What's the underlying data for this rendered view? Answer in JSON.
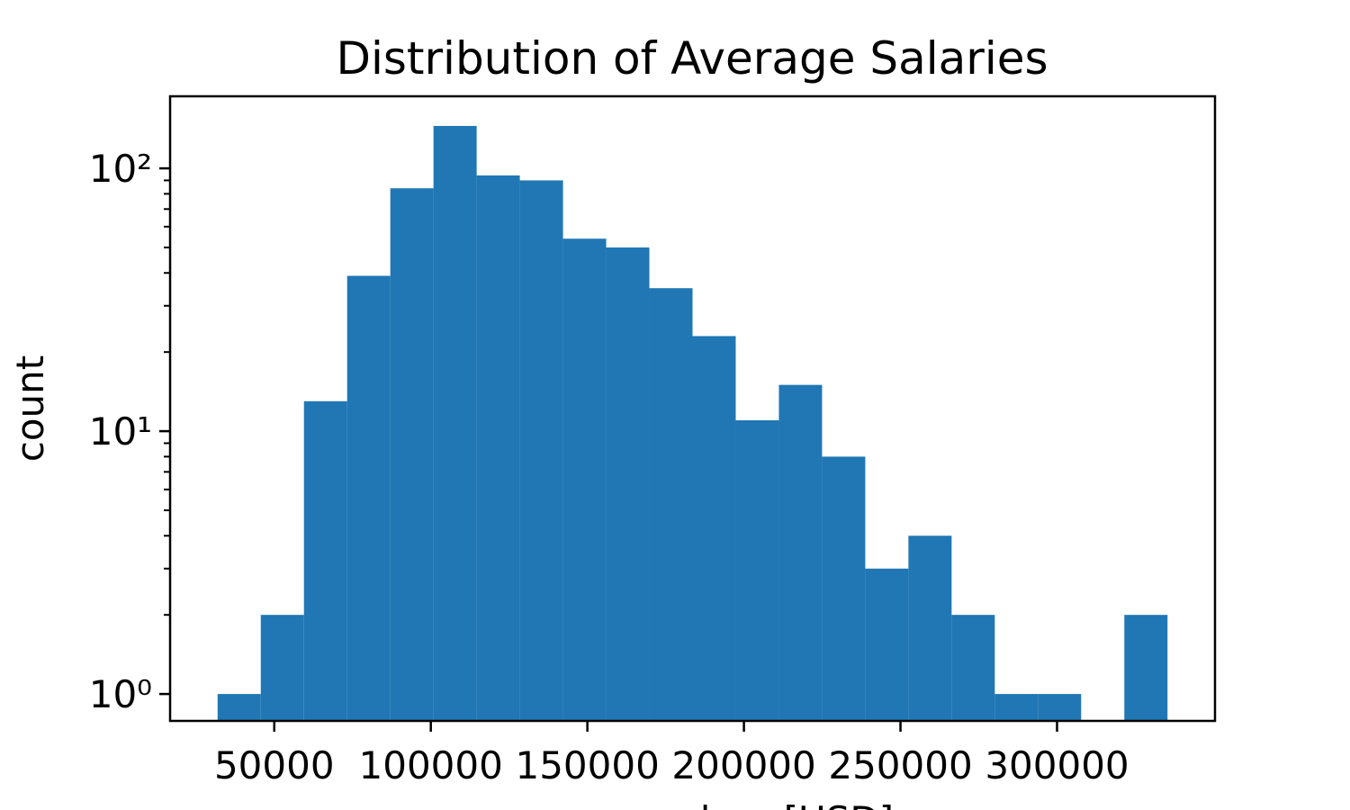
{
  "chart_data": {
    "type": "histogram",
    "title": "Distribution of Average Salaries",
    "xlabel": "average salary [USD]",
    "ylabel": "count",
    "bins": [
      31900,
      45690,
      59480,
      73270,
      87060,
      100850,
      114640,
      128430,
      142220,
      156010,
      169800,
      183590,
      197380,
      211170,
      224960,
      238750,
      252540,
      266330,
      280120,
      293910,
      307700,
      321490,
      335280
    ],
    "counts": [
      1,
      2,
      13,
      39,
      84,
      145,
      94,
      90,
      54,
      50,
      35,
      23,
      11,
      15,
      8,
      3,
      4,
      2,
      1,
      1,
      0,
      2
    ],
    "color": "#2077b4",
    "xlim": [
      16731,
      350449
    ],
    "xticks": [
      50000,
      100000,
      150000,
      200000,
      250000,
      300000
    ],
    "ylim": [
      0.79,
      188
    ],
    "yscale": "log",
    "yticks": [
      {
        "value": 1,
        "label": "10⁰"
      },
      {
        "value": 10,
        "label": "10¹"
      },
      {
        "value": 100,
        "label": "10²"
      }
    ],
    "yminorticks": [
      2,
      3,
      4,
      5,
      6,
      7,
      8,
      9,
      20,
      30,
      40,
      50,
      60,
      70,
      80,
      90
    ]
  }
}
